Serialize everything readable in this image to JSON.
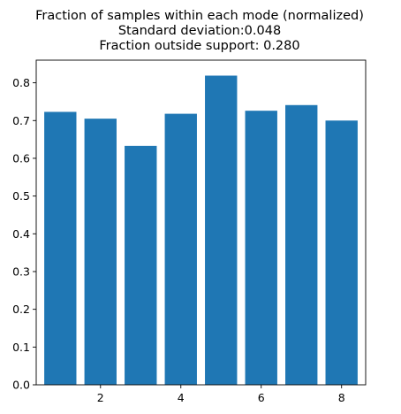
{
  "chart_data": {
    "type": "bar",
    "title": [
      "Fraction of samples within each mode (normalized)",
      "Standard deviation:0.048",
      "Fraction outside support: 0.280"
    ],
    "xlabel": "",
    "ylabel": "",
    "x": [
      1,
      2,
      3,
      4,
      5,
      6,
      7,
      8
    ],
    "values": [
      0.723,
      0.705,
      0.633,
      0.718,
      0.819,
      0.726,
      0.741,
      0.7
    ],
    "xlim": [
      0.4,
      8.6
    ],
    "ylim": [
      0,
      0.86
    ],
    "bar_width": 0.8,
    "xticks": [
      2,
      4,
      6,
      8
    ],
    "xtick_labels": [
      "2",
      "4",
      "6",
      "8"
    ],
    "yticks": [
      0.0,
      0.1,
      0.2,
      0.3,
      0.4,
      0.5,
      0.6,
      0.7,
      0.8
    ],
    "ytick_labels": [
      "0.0",
      "0.1",
      "0.2",
      "0.3",
      "0.4",
      "0.5",
      "0.6",
      "0.7",
      "0.8"
    ],
    "grid": false,
    "legend": "none",
    "bar_color": "#1f77b4"
  }
}
